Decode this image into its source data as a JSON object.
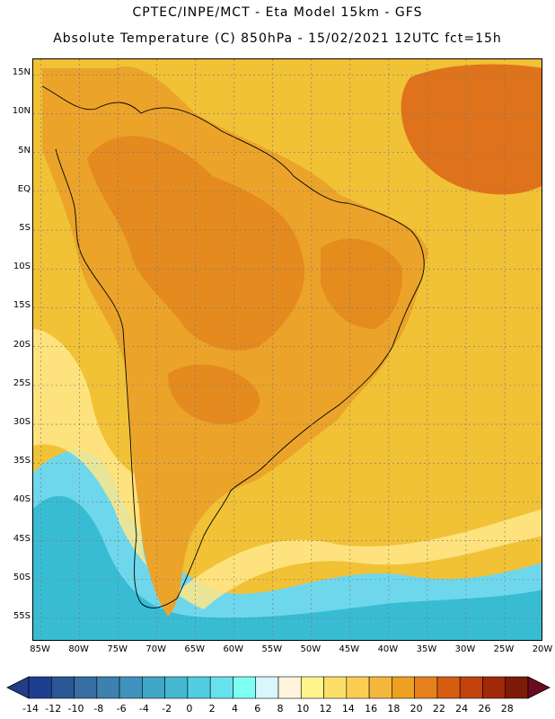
{
  "header": {
    "line1": "CPTEC/INPE/MCT -  Eta Model 15km - GFS",
    "line2": "Absolute Temperature (C) 850hPa - 15/02/2021 12UTC fct=15h"
  },
  "map": {
    "lat_labels": [
      "15N",
      "10N",
      "5N",
      "EQ",
      "5S",
      "10S",
      "15S",
      "20S",
      "25S",
      "30S",
      "35S",
      "40S",
      "45S",
      "50S",
      "55S"
    ],
    "lon_labels": [
      "85W",
      "80W",
      "75W",
      "70W",
      "65W",
      "60W",
      "55W",
      "50W",
      "45W",
      "40W",
      "35W",
      "30W",
      "25W",
      "20W"
    ],
    "lat_range": [
      17,
      -58
    ],
    "lon_range": [
      -86,
      -20
    ],
    "grid_step_deg": 5,
    "background_color": "#f1c136",
    "features": [
      {
        "name": "south-america-landmass",
        "color": "#eba32a"
      },
      {
        "name": "amazon-warm-core",
        "color": "#e3861c"
      },
      {
        "name": "ne-atlantic-warm-patch",
        "color": "#dd6f1a"
      },
      {
        "name": "southern-cold-ocean",
        "color": "#6fd7ec"
      },
      {
        "name": "southern-cold-core",
        "color": "#38bcd3"
      },
      {
        "name": "andes-cool-zone",
        "color": "#ffe889"
      }
    ]
  },
  "colorbar": {
    "labels": [
      "-14",
      "-12",
      "-10",
      "-8",
      "-6",
      "-4",
      "-2",
      "0",
      "2",
      "4",
      "6",
      "8",
      "10",
      "12",
      "14",
      "16",
      "18",
      "20",
      "22",
      "24",
      "26",
      "28"
    ],
    "colors": [
      "#1e3f8f",
      "#2c5796",
      "#376ea3",
      "#3c81b0",
      "#3f93be",
      "#42a6c9",
      "#46b8d2",
      "#52cde1",
      "#68e2ee",
      "#7ffff4",
      "#d7f7fa",
      "#fff5dc",
      "#fff58c",
      "#fcdf6a",
      "#fbce53",
      "#f4b73e",
      "#eea023",
      "#e6801c",
      "#d65c12",
      "#c2420e",
      "#a2280b",
      "#7d1a08"
    ],
    "under_color": "#233d8a",
    "over_color": "#6a0b1e"
  }
}
